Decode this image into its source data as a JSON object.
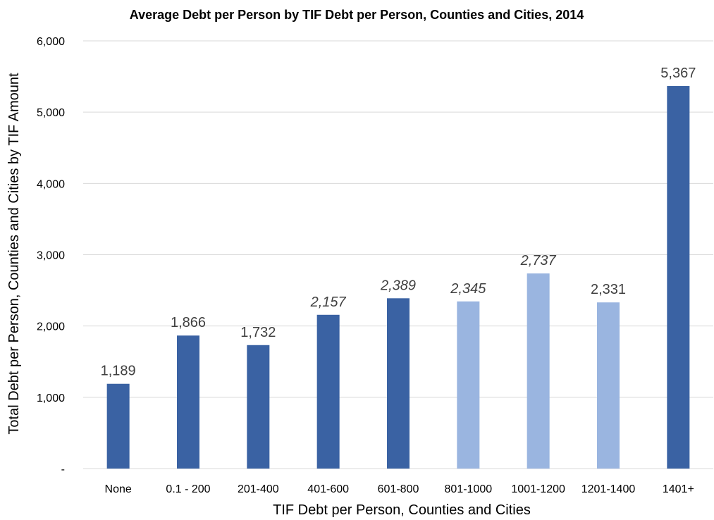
{
  "chart_data": {
    "type": "bar",
    "title": "Average Debt per Person by TIF Debt per Person, Counties and Cities, 2014",
    "xlabel": "TIF Debt per Person, Counties and Cities",
    "ylabel": "Total Debt per Person, Counties and Cities by TIF Amount",
    "categories": [
      "None",
      "0.1 - 200",
      "201-400",
      "401-600",
      "601-800",
      "801-1000",
      "1001-1200",
      "1201-1400",
      "1401+"
    ],
    "values": [
      1189,
      1866,
      1732,
      2157,
      2389,
      2345,
      2737,
      2331,
      5367
    ],
    "data_labels": [
      "1,189",
      "1,866",
      "1,732",
      "2,157",
      "2,389",
      "2,345",
      "2,737",
      "2,331",
      "5,367"
    ],
    "label_italic": [
      false,
      false,
      false,
      true,
      true,
      true,
      true,
      false,
      false
    ],
    "bar_colors": [
      "#3a62a3",
      "#3a62a3",
      "#3a62a3",
      "#3a62a3",
      "#3a62a3",
      "#9ab5e0",
      "#9ab5e0",
      "#9ab5e0",
      "#3a62a3"
    ],
    "ylim": [
      0,
      6000
    ],
    "yticks": [
      0,
      1000,
      2000,
      3000,
      4000,
      5000,
      6000
    ],
    "ytick_labels": [
      "-",
      "1,000",
      "2,000",
      "3,000",
      "4,000",
      "5,000",
      "6,000"
    ],
    "grid": true,
    "legend": "none"
  }
}
